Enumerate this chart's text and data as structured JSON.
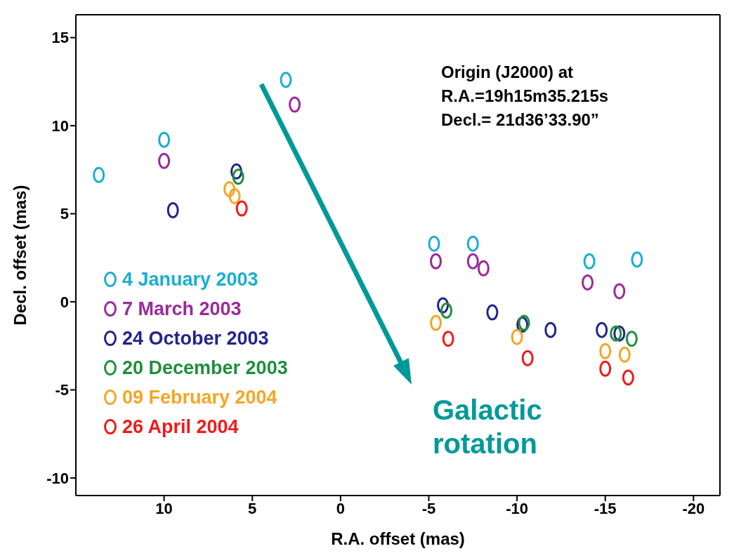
{
  "chart_data": {
    "type": "scatter",
    "xlabel": "R.A. offset (mas)",
    "ylabel": "Decl. offset (mas)",
    "xlim": [
      15,
      -21.5
    ],
    "xticks": [
      10,
      5,
      0,
      -5,
      -10,
      -15,
      -20
    ],
    "ylim": [
      -11,
      16.3
    ],
    "yticks": [
      -10,
      -5,
      0,
      5,
      10,
      15
    ],
    "marker": "circle",
    "legend": "left",
    "annotations": [
      "Origin (J2000) at\nR.A.=19h15m35.215s\nDecl.= 21d36’33.90”",
      "Galactic rotation"
    ],
    "series": [
      {
        "name": "4 January 2003",
        "color": "#1aaed0",
        "x": [
          13.7,
          10.0,
          3.1,
          -5.3,
          -7.5,
          -14.1,
          -16.8
        ],
        "values": [
          7.2,
          9.2,
          12.6,
          3.3,
          3.3,
          2.3,
          2.4
        ]
      },
      {
        "name": "7 March 2003",
        "color": "#9b2a9b",
        "x": [
          10.0,
          2.6,
          -5.4,
          -7.5,
          -8.1,
          -14.0,
          -15.8
        ],
        "values": [
          8.0,
          11.2,
          2.3,
          2.3,
          1.9,
          1.1,
          0.6
        ]
      },
      {
        "name": "24 October 2003",
        "color": "#23238c",
        "x": [
          9.5,
          5.9,
          -5.8,
          -8.6,
          -10.3,
          -11.9,
          -14.8,
          -15.8
        ],
        "values": [
          5.2,
          7.4,
          -0.2,
          -0.6,
          -1.3,
          -1.6,
          -1.6,
          -1.8
        ]
      },
      {
        "name": "20 December 2003",
        "color": "#1f8f3a",
        "x": [
          5.8,
          -6.0,
          -10.4,
          -15.6,
          -16.5
        ],
        "values": [
          7.1,
          -0.5,
          -1.2,
          -1.8,
          -2.1
        ]
      },
      {
        "name": "09 February 2004",
        "color": "#f5a623",
        "x": [
          6.3,
          6.0,
          -5.4,
          -10.0,
          -15.0,
          -16.1
        ],
        "values": [
          6.4,
          6.0,
          -1.2,
          -2.0,
          -2.8,
          -3.0
        ]
      },
      {
        "name": "26 April 2004",
        "color": "#f01a1a",
        "x": [
          5.6,
          -6.1,
          -10.6,
          -15.0,
          -16.3
        ],
        "values": [
          5.3,
          -2.1,
          -3.2,
          -3.8,
          -4.3
        ]
      }
    ]
  }
}
